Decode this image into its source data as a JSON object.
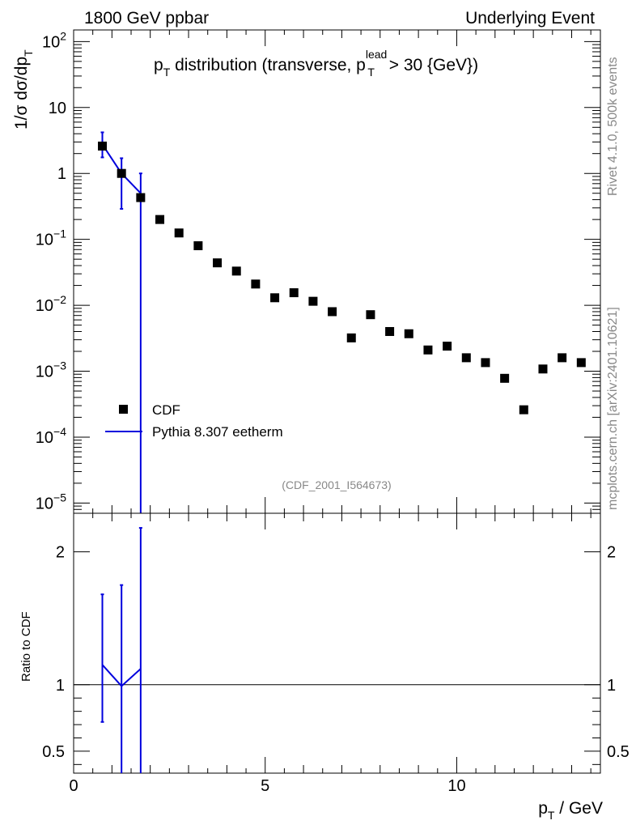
{
  "header": {
    "left": "1800 GeV ppbar",
    "right": "Underlying Event"
  },
  "side_text": {
    "top": "Rivet 4.1.0,  500k events",
    "bottom": "mcplots.cern.ch [arXiv:2401.10621]"
  },
  "watermark": "(CDF_2001_I564673)",
  "colors": {
    "data": "#000000",
    "mc": "#0000dd",
    "ref_line": "#000000"
  },
  "chart_data": {
    "type": "scatter",
    "title_parts": {
      "prefix": "p",
      "sub": "T",
      "mid": " distribution (transverse, p",
      "lead_sup": "lead",
      "lead_sub": "T",
      "suffix": " > 30 {GeV})"
    },
    "ylabel": "1/σ  dσ/dp_T",
    "ylabel_parts": {
      "main": "1/σ  dσ/dp",
      "sub": "T"
    },
    "xlabel_parts": {
      "main": "p",
      "sub": "T",
      "rest": " / GeV"
    },
    "ratio_ylabel": "Ratio to CDF",
    "xlim": [
      0,
      13.75
    ],
    "ylim_log": [
      7e-06,
      150
    ],
    "ratio_ylim": [
      0.335,
      2.29
    ],
    "x_ticks": [
      {
        "v": 0,
        "label": "0"
      },
      {
        "v": 5,
        "label": "5"
      },
      {
        "v": 10,
        "label": "10"
      }
    ],
    "y_ticks": [
      {
        "v": 100,
        "base": "10",
        "exp": "2"
      },
      {
        "v": 10,
        "base": "10",
        "exp": ""
      },
      {
        "v": 1,
        "base": "1",
        "exp": ""
      },
      {
        "v": 0.1,
        "base": "10",
        "exp": "−1"
      },
      {
        "v": 0.01,
        "base": "10",
        "exp": "−2"
      },
      {
        "v": 0.001,
        "base": "10",
        "exp": "−3"
      },
      {
        "v": 0.0001,
        "base": "10",
        "exp": "−4"
      },
      {
        "v": 1e-05,
        "base": "10",
        "exp": "−5"
      }
    ],
    "ratio_ticks": [
      {
        "v": 2,
        "label": "2"
      },
      {
        "v": 1,
        "label": "1"
      },
      {
        "v": 0.5,
        "label": "0.5"
      }
    ],
    "legend": [
      {
        "label": "CDF",
        "marker": "square"
      },
      {
        "label": "Pythia 8.307 eetherm",
        "marker": "line"
      }
    ],
    "series": [
      {
        "name": "CDF",
        "x": [
          0.75,
          1.25,
          1.75,
          2.25,
          2.75,
          3.25,
          3.75,
          4.25,
          4.75,
          5.25,
          5.75,
          6.25,
          6.75,
          7.25,
          7.75,
          8.25,
          8.75,
          9.25,
          9.75,
          10.25,
          10.75,
          11.25,
          11.75,
          12.25,
          12.75,
          13.25
        ],
        "y": [
          2.6,
          1.0,
          0.43,
          0.2,
          0.125,
          0.08,
          0.044,
          0.033,
          0.021,
          0.013,
          0.0155,
          0.0115,
          0.008,
          0.0032,
          0.0072,
          0.004,
          0.0037,
          0.0021,
          0.0024,
          0.0016,
          0.00135,
          0.00078,
          0.00026,
          0.00108,
          0.0016,
          0.00135
        ]
      },
      {
        "name": "Pythia 8.307 eetherm",
        "x": [
          0.75,
          1.25,
          1.75
        ],
        "y": [
          2.75,
          1.0,
          0.5
        ],
        "y_lo": [
          1.75,
          0.29,
          1e-06
        ],
        "y_hi": [
          4.2,
          1.7,
          1.0
        ]
      }
    ],
    "ratio": {
      "x": [
        0.75,
        1.25,
        1.75
      ],
      "y": [
        1.15,
        0.99,
        1.12
      ],
      "y_lo": [
        0.72,
        0.1,
        0.1
      ],
      "y_hi": [
        1.68,
        1.75,
        2.18
      ]
    }
  }
}
